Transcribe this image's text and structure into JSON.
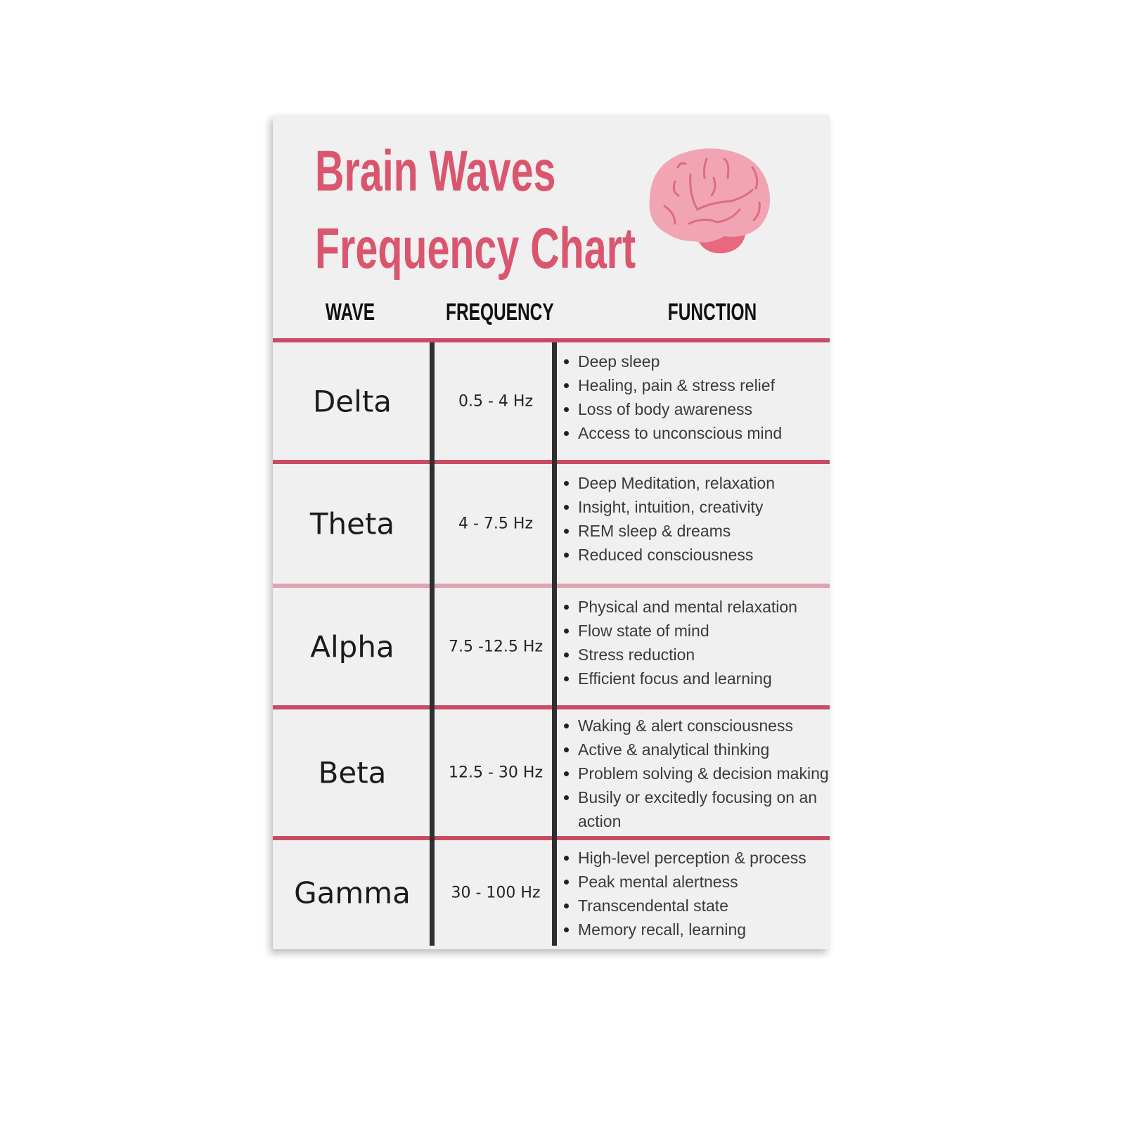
{
  "title": {
    "line1": "Brain Waves",
    "line2": "Frequency Chart"
  },
  "brain_icon": "brain-icon",
  "colors": {
    "title": "#d9566e",
    "divider": "#c94c64",
    "column_rule": "#2e2e33",
    "brain": "#f1a5b4",
    "brain_stem": "#e8687f"
  },
  "headers": {
    "wave": "WAVE",
    "frequency": "FREQUENCY",
    "function": "FUNCTION"
  },
  "rows": [
    {
      "wave": "Delta",
      "frequency": "0.5 - 4 Hz",
      "functions": [
        "Deep sleep",
        "Healing, pain & stress relief",
        "Loss of body awareness",
        "Access to unconscious mind"
      ]
    },
    {
      "wave": "Theta",
      "frequency": "4 - 7.5 Hz",
      "functions": [
        "Deep Meditation, relaxation",
        "Insight, intuition, creativity",
        "REM sleep & dreams",
        "Reduced consciousness"
      ]
    },
    {
      "wave": "Alpha",
      "frequency": "7.5 -12.5 Hz",
      "functions": [
        "Physical and mental relaxation",
        "Flow state of mind",
        "Stress reduction",
        "Efficient focus and learning"
      ]
    },
    {
      "wave": "Beta",
      "frequency": "12.5 - 30 Hz",
      "functions": [
        "Waking & alert consciousness",
        "Active & analytical thinking",
        "Problem solving & decision making",
        "Busily or excitedly focusing on an action"
      ]
    },
    {
      "wave": "Gamma",
      "frequency": "30 - 100 Hz",
      "functions": [
        "High-level perception & process",
        "Peak mental alertness",
        "Transcendental state",
        "Memory recall, learning"
      ]
    }
  ]
}
